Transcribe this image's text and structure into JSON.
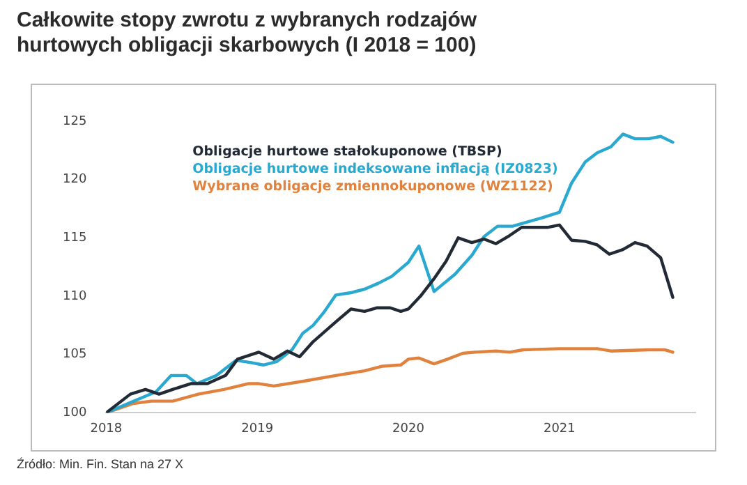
{
  "chart_data": {
    "type": "line",
    "title": "Całkowite stopy zwrotu z wybranych rodzajów hurtowych obligacji skarbowych (I 2018 = 100)",
    "annotations": [
      "Źródło: Min. Fin. Stan na 27 X"
    ],
    "xlim": [
      2018,
      2021.9
    ],
    "xticks": [
      2018,
      2019,
      2020,
      2021
    ],
    "ylim": [
      100,
      125
    ],
    "yticks": [
      100,
      105,
      110,
      115,
      120,
      125
    ],
    "legend": "top left",
    "series": [
      {
        "name": "Obligacje hurtowe stałokuponowe (TBSP)",
        "color": "#222a35",
        "x": [
          2018,
          2018.16,
          2018.26,
          2018.35,
          2018.44,
          2018.56,
          2018.67,
          2018.79,
          2018.87,
          2019.01,
          2019.11,
          2019.2,
          2019.28,
          2019.37,
          2019.52,
          2019.62,
          2019.71,
          2019.79,
          2019.88,
          2019.95,
          2020.0,
          2020.08,
          2020.17,
          2020.25,
          2020.33,
          2020.42,
          2020.5,
          2020.58,
          2020.67,
          2020.75,
          2020.83,
          2020.92,
          2021.0,
          2021.08,
          2021.17,
          2021.25,
          2021.33,
          2021.42,
          2021.5,
          2021.58,
          2021.67,
          2021.75
        ],
        "values": [
          100,
          101.6,
          102.0,
          101.6,
          102.0,
          102.5,
          102.5,
          103.2,
          104.6,
          105.2,
          104.6,
          105.3,
          104.8,
          106.1,
          107.8,
          108.9,
          108.7,
          109.0,
          109.0,
          108.7,
          108.9,
          110.0,
          111.5,
          113.0,
          115.0,
          114.6,
          114.9,
          114.5,
          115.2,
          115.9,
          115.9,
          115.9,
          116.1,
          114.8,
          114.7,
          114.4,
          113.6,
          114.0,
          114.6,
          114.3,
          113.3,
          109.9
        ]
      },
      {
        "name": "Obligacje hurtowe indeksowane inflacją (IZ0823)",
        "color": "#29a9cf",
        "x": [
          2018,
          2018.2,
          2018.33,
          2018.43,
          2018.53,
          2018.6,
          2018.73,
          2018.86,
          2018.96,
          2019.04,
          2019.13,
          2019.23,
          2019.3,
          2019.37,
          2019.44,
          2019.52,
          2019.62,
          2019.71,
          2019.8,
          2019.89,
          2020.0,
          2020.07,
          2020.17,
          2020.31,
          2020.42,
          2020.5,
          2020.59,
          2020.69,
          2020.77,
          2020.88,
          2021.0,
          2021.08,
          2021.17,
          2021.25,
          2021.34,
          2021.42,
          2021.5,
          2021.59,
          2021.67,
          2021.75
        ],
        "values": [
          100,
          101.1,
          101.8,
          103.2,
          103.2,
          102.5,
          103.2,
          104.5,
          104.3,
          104.1,
          104.4,
          105.4,
          106.8,
          107.5,
          108.6,
          110.1,
          110.3,
          110.6,
          111.1,
          111.7,
          112.9,
          114.3,
          110.4,
          111.9,
          113.5,
          115.1,
          116.0,
          116.0,
          116.3,
          116.7,
          117.2,
          119.7,
          121.5,
          122.3,
          122.8,
          123.9,
          123.5,
          123.5,
          123.7,
          123.2
        ]
      },
      {
        "name": "Wybrane obligacje zmiennokuponowe (WZ1122)",
        "color": "#e0823d",
        "x": [
          2018,
          2018.18,
          2018.3,
          2018.44,
          2018.61,
          2018.78,
          2018.94,
          2019.01,
          2019.11,
          2019.3,
          2019.52,
          2019.71,
          2019.83,
          2019.95,
          2020.0,
          2020.07,
          2020.17,
          2020.26,
          2020.36,
          2020.44,
          2020.58,
          2020.67,
          2020.76,
          2021.0,
          2021.25,
          2021.34,
          2021.59,
          2021.7,
          2021.75
        ],
        "values": [
          100,
          100.8,
          101.0,
          101.0,
          101.6,
          102.0,
          102.5,
          102.5,
          102.3,
          102.7,
          103.2,
          103.6,
          104.0,
          104.1,
          104.6,
          104.7,
          104.2,
          104.6,
          105.1,
          105.2,
          105.3,
          105.2,
          105.4,
          105.5,
          105.5,
          105.3,
          105.4,
          105.4,
          105.2
        ]
      }
    ]
  }
}
